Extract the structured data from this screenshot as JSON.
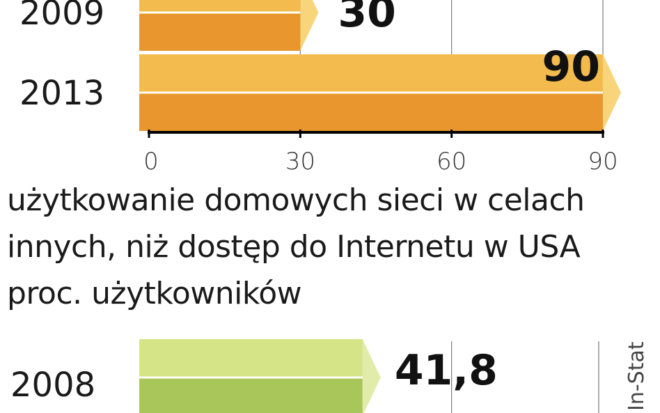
{
  "colors": {
    "orange_top": "#f3bb4e",
    "orange_bottom": "#e8962d",
    "orange_tip": "#f8d47a",
    "green_top": "#d4e487",
    "green_bottom": "#a9c65a",
    "green_tip": "#e2ecaa",
    "axis": "#000000",
    "grid": "#7a7a7a"
  },
  "chart_data": [
    {
      "type": "bar",
      "orientation": "horizontal",
      "categories": [
        "2009",
        "2013"
      ],
      "values": [
        30,
        90
      ],
      "value_labels": [
        "30",
        "90"
      ],
      "xlim": [
        0,
        90
      ],
      "xticks": [
        "0",
        "30",
        "60",
        "90"
      ],
      "grid": true
    },
    {
      "type": "bar",
      "orientation": "horizontal",
      "title_lines": [
        "użytkowanie domowych sieci w celach",
        "innych, niż dostęp do Internetu w USA",
        "proc. użytkowników"
      ],
      "categories": [
        "2008"
      ],
      "values": [
        41.8
      ],
      "value_labels": [
        "41,8"
      ],
      "grid": true
    }
  ],
  "source": "In-Stat"
}
